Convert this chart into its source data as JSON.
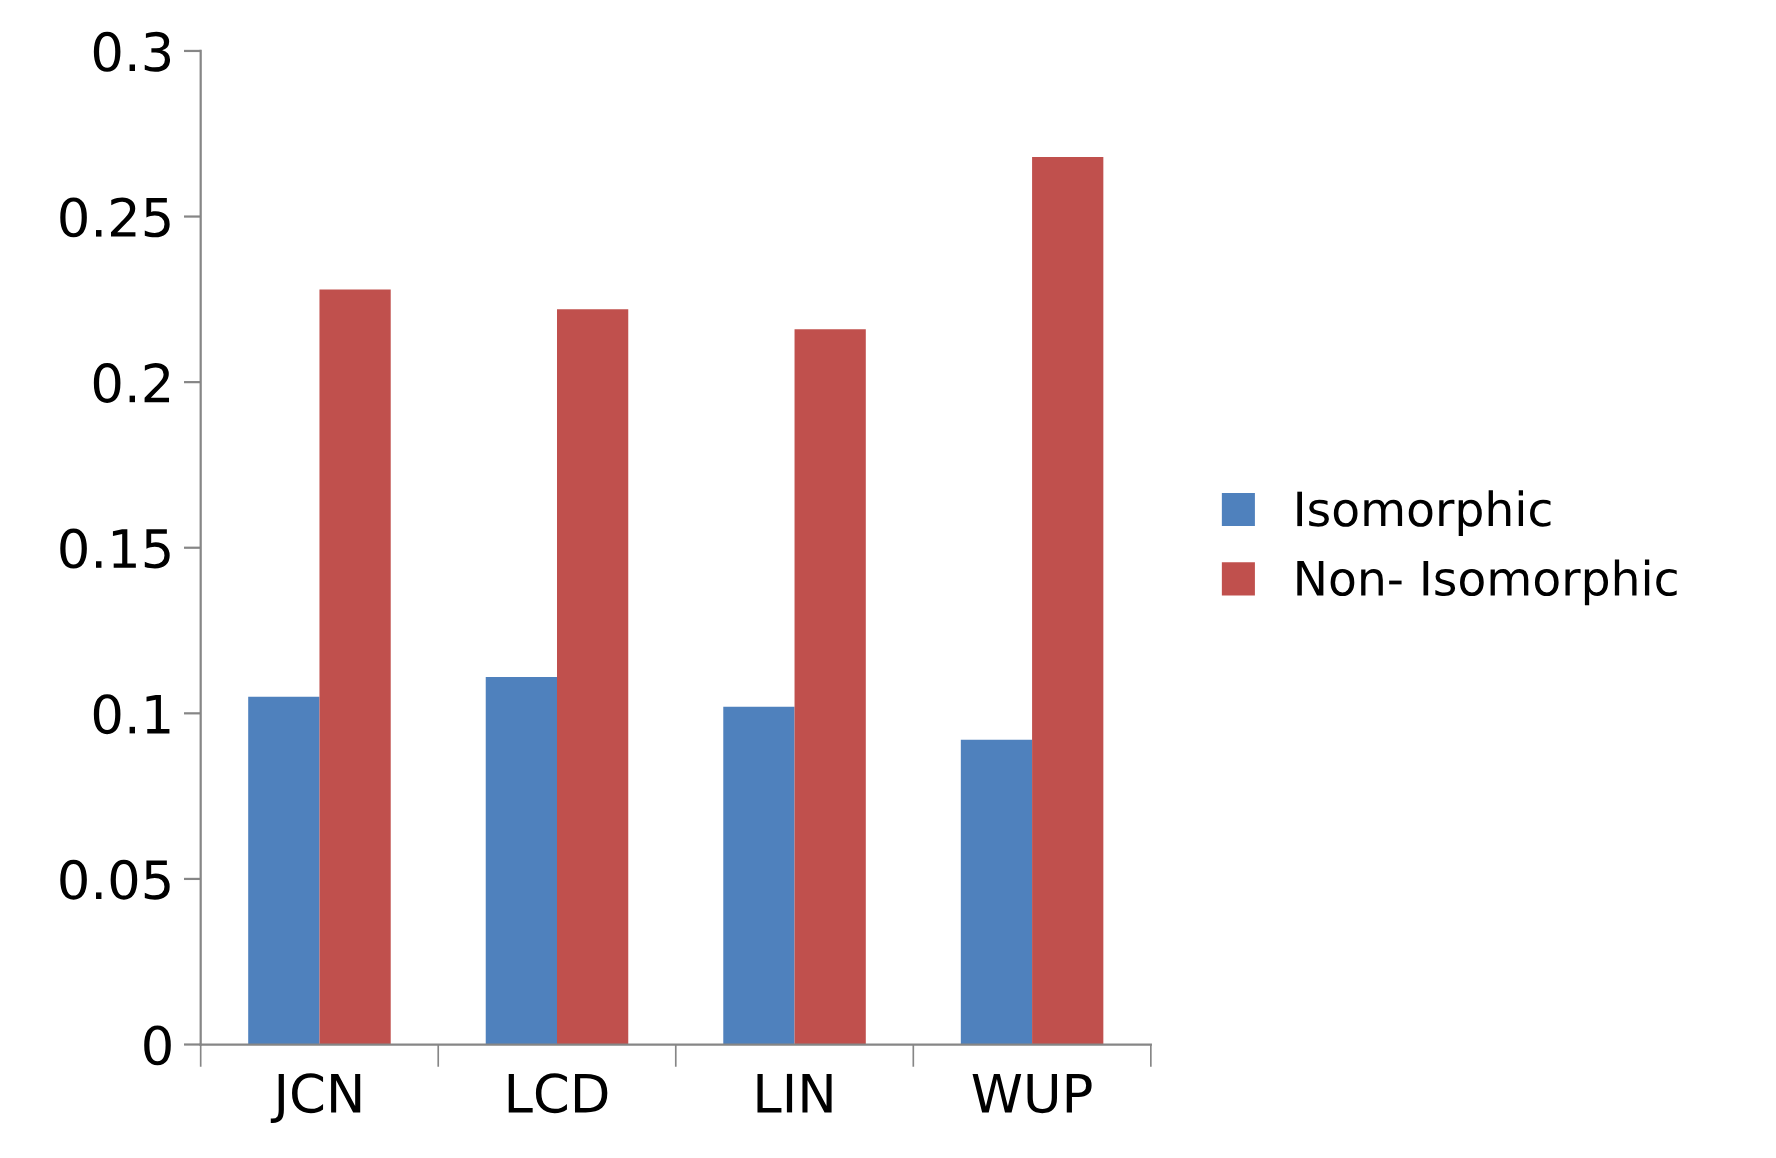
{
  "chart_data": {
    "type": "bar",
    "categories": [
      "JCN",
      "LCD",
      "LIN",
      "WUP"
    ],
    "series": [
      {
        "name": "Isomorphic",
        "color": "#4f81bd",
        "values": [
          0.105,
          0.111,
          0.102,
          0.092
        ]
      },
      {
        "name": "Non- Isomorphic",
        "color": "#c0504d",
        "values": [
          0.228,
          0.222,
          0.216,
          0.268
        ]
      }
    ],
    "ylim": [
      0,
      0.3
    ],
    "yticks": [
      0,
      0.05,
      0.1,
      0.15,
      0.2,
      0.25,
      0.3
    ],
    "grid": false,
    "legend": "right"
  }
}
